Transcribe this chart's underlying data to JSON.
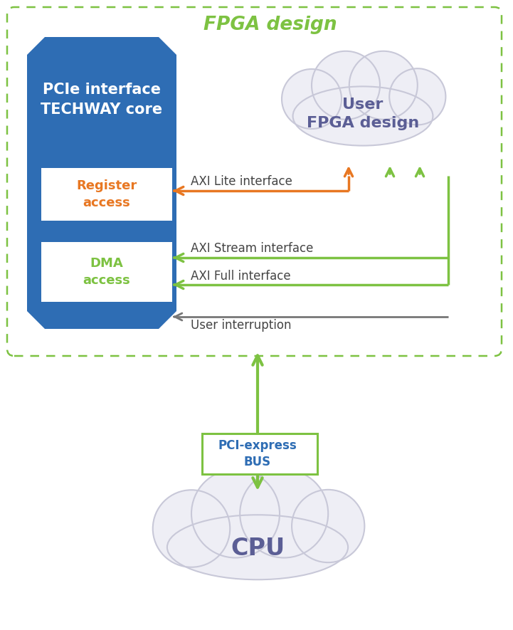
{
  "title": "FPGA design",
  "title_color": "#7dc242",
  "bg_color": "#ffffff",
  "fpga_border_color": "#7dc242",
  "pcie_block_color": "#2e6db4",
  "pcie_title": "PCIe interface\nTECHWAY core",
  "pcie_title_color": "#ffffff",
  "register_text": "Register\naccess",
  "register_text_color": "#e87722",
  "dma_text": "DMA\naccess",
  "dma_text_color": "#7dc242",
  "user_cloud_text": "User\nFPGA design",
  "user_cloud_text_color": "#5b5e95",
  "cpu_cloud_text": "CPU",
  "cpu_cloud_text_color": "#5b5e95",
  "pci_bus_text": "PCI-express\nBUS",
  "pci_bus_text_color": "#2e6db4",
  "pci_bus_border_color": "#7dc242",
  "axi_lite_text": "AXI Lite interface",
  "axi_stream_text": "AXI Stream interface",
  "axi_full_text": "AXI Full interface",
  "user_int_text": "User interruption",
  "interface_text_color": "#444444",
  "user_int_color": "#808080",
  "arrow_orange": "#e87722",
  "arrow_green": "#7dc242",
  "arrow_gray": "#777777",
  "cloud_face": "#eeeef5",
  "cloud_edge": "#c8c8d8"
}
